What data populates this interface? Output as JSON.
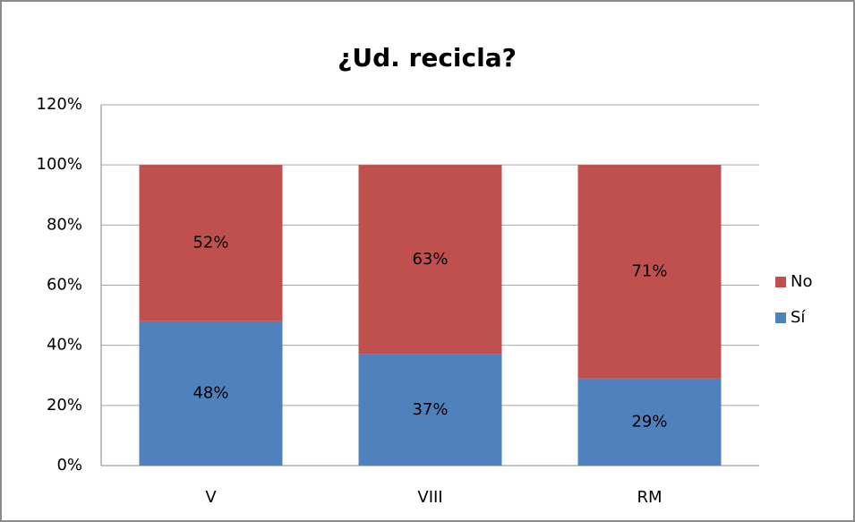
{
  "chart_data": {
    "type": "stacked_bar",
    "title": "¿Ud. recicla?",
    "categories": [
      "V",
      "VIII",
      "RM"
    ],
    "series": [
      {
        "name": "Sí",
        "color": "#4f81bd",
        "values": [
          48,
          37,
          29
        ],
        "value_labels": [
          "48%",
          "37%",
          "29%"
        ]
      },
      {
        "name": "No",
        "color": "#c0504d",
        "values": [
          52,
          63,
          71
        ],
        "value_labels": [
          "52%",
          "63%",
          "71%"
        ]
      }
    ],
    "ylim": [
      0,
      120
    ],
    "yticks": [
      {
        "value": 0,
        "label": "0%"
      },
      {
        "value": 20,
        "label": "20%"
      },
      {
        "value": 40,
        "label": "40%"
      },
      {
        "value": 60,
        "label": "60%"
      },
      {
        "value": 80,
        "label": "80%"
      },
      {
        "value": 100,
        "label": "100%"
      },
      {
        "value": 120,
        "label": "120%"
      }
    ],
    "grid": true,
    "legend": "right"
  }
}
